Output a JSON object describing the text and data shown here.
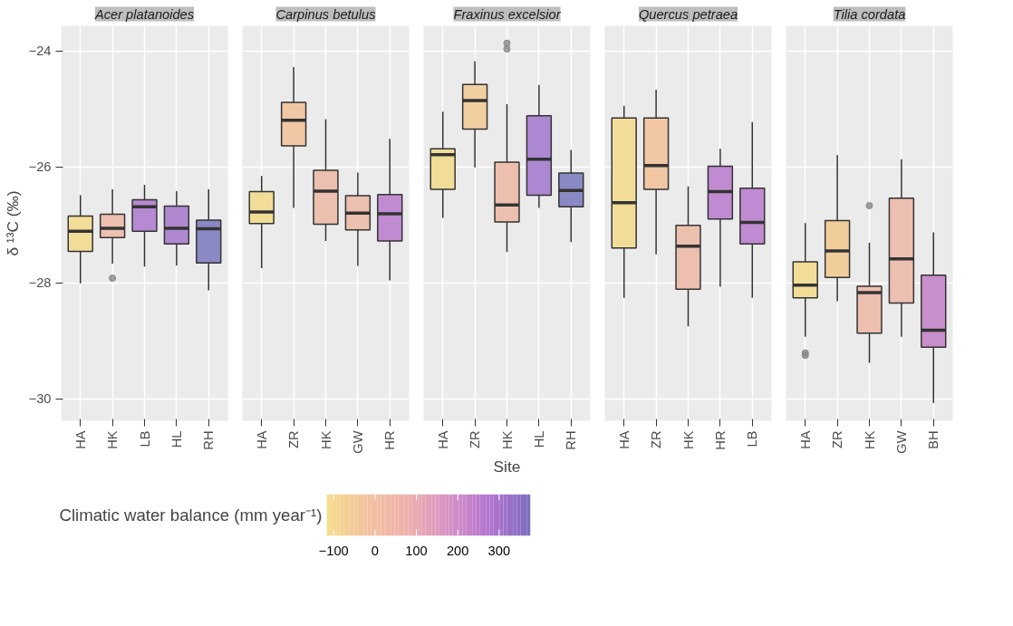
{
  "chart_data": [
    {
      "type": "box",
      "title": "Acer platanoides",
      "ylabel": "δ ¹³C (‰)",
      "clabel": "Climatic water balance (mm year⁻¹)",
      "clim": [
        -117,
        376
      ],
      "cticks": [
        -100,
        0,
        100,
        200,
        300
      ],
      "categories": [
        "HA",
        "HK",
        "LB",
        "HL",
        "RH"
      ],
      "colors": [
        "#f2dd98",
        "#ecbfae",
        "#b68ad2",
        "#b088d0",
        "#8b89c4"
      ],
      "boxes": [
        {
          "low": -28.01,
          "q1": -27.46,
          "median": -27.11,
          "q3": -26.85,
          "high": -26.49
        },
        {
          "low": -27.67,
          "q1": -27.22,
          "median": -27.06,
          "q3": -26.82,
          "high": -26.39,
          "outliers": [
            -27.92
          ]
        },
        {
          "low": -27.72,
          "q1": -27.11,
          "median": -26.69,
          "q3": -26.57,
          "high": -26.31
        },
        {
          "low": -27.7,
          "q1": -27.33,
          "median": -27.06,
          "q3": -26.68,
          "high": -26.42
        },
        {
          "low": -28.13,
          "q1": -27.66,
          "median": -27.07,
          "q3": -26.92,
          "high": -26.39
        }
      ],
      "ylim": [
        -30.38,
        -23.57
      ],
      "yticks": [
        -24,
        -26,
        -28,
        -30
      ],
      "grid": true
    },
    {
      "type": "box",
      "title": "Carpinus betulus",
      "categories": [
        "HA",
        "ZR",
        "HK",
        "GW",
        "HR"
      ],
      "colors": [
        "#f2dd98",
        "#f1c7a4",
        "#ecbfae",
        "#ecbfae",
        "#c08bd0"
      ],
      "boxes": [
        {
          "low": -27.75,
          "q1": -26.98,
          "median": -26.78,
          "q3": -26.43,
          "high": -26.16
        },
        {
          "low": -26.71,
          "q1": -25.64,
          "median": -25.2,
          "q3": -24.89,
          "high": -24.28
        },
        {
          "low": -27.28,
          "q1": -26.99,
          "median": -26.42,
          "q3": -26.06,
          "high": -25.18
        },
        {
          "low": -27.71,
          "q1": -27.09,
          "median": -26.8,
          "q3": -26.5,
          "high": -26.1
        },
        {
          "low": -27.96,
          "q1": -27.28,
          "median": -26.81,
          "q3": -26.48,
          "high": -25.52
        }
      ],
      "ylim": [
        -30.38,
        -23.57
      ],
      "yticks": [
        -24,
        -26,
        -28,
        -30
      ],
      "grid": true,
      "tick_labels": "x"
    },
    {
      "type": "box",
      "title": "Fraxinus excelsior",
      "xlabel": "Site",
      "categories": [
        "HA",
        "ZR",
        "HK",
        "HL",
        "RH"
      ],
      "colors": [
        "#f2dd98",
        "#f2cfa0",
        "#ecbfae",
        "#ad88d2",
        "#8b89c4"
      ],
      "boxes": [
        {
          "low": -26.88,
          "q1": -26.39,
          "median": -25.79,
          "q3": -25.69,
          "high": -25.05
        },
        {
          "low": -26.01,
          "q1": -25.35,
          "median": -24.86,
          "q3": -24.58,
          "high": -24.18
        },
        {
          "low": -27.47,
          "q1": -26.95,
          "median": -26.66,
          "q3": -25.92,
          "high": -24.92,
          "outliers": [
            -23.87,
            -23.97
          ]
        },
        {
          "low": -26.71,
          "q1": -26.49,
          "median": -25.87,
          "q3": -25.12,
          "high": -24.59
        },
        {
          "low": -27.3,
          "q1": -26.69,
          "median": -26.41,
          "q3": -26.11,
          "high": -25.71
        }
      ],
      "ylim": [
        -30.38,
        -23.57
      ],
      "yticks": [
        -24,
        -26,
        -28,
        -30
      ],
      "grid": true,
      "tick_labels": "x"
    },
    {
      "type": "box",
      "title": "Quercus petraea",
      "categories": [
        "HA",
        "ZR",
        "HK",
        "HR",
        "LB"
      ],
      "colors": [
        "#f2dd98",
        "#f1c7a4",
        "#ecbfae",
        "#c08bd0",
        "#c08bd0"
      ],
      "boxes": [
        {
          "low": -28.26,
          "q1": -27.4,
          "median": -26.62,
          "q3": -25.16,
          "high": -24.95
        },
        {
          "low": -27.51,
          "q1": -26.39,
          "median": -25.98,
          "q3": -25.16,
          "high": -24.67
        },
        {
          "low": -28.75,
          "q1": -28.11,
          "median": -27.37,
          "q3": -27.01,
          "high": -26.34
        },
        {
          "low": -28.07,
          "q1": -26.9,
          "median": -26.43,
          "q3": -25.99,
          "high": -25.69
        },
        {
          "low": -28.26,
          "q1": -27.33,
          "median": -26.96,
          "q3": -26.37,
          "high": -25.23
        }
      ],
      "ylim": [
        -30.38,
        -23.57
      ],
      "yticks": [
        -24,
        -26,
        -28,
        -30
      ],
      "grid": true,
      "tick_labels": "x"
    },
    {
      "type": "box",
      "title": "Tilia cordata",
      "categories": [
        "HA",
        "ZR",
        "HK",
        "GW",
        "BH"
      ],
      "colors": [
        "#f2dd98",
        "#f2cd9c",
        "#ecbfae",
        "#ecbfb0",
        "#c98ecc"
      ],
      "boxes": [
        {
          "low": -28.93,
          "q1": -28.26,
          "median": -28.04,
          "q3": -27.64,
          "high": -26.97,
          "outliers": [
            -29.21,
            -29.25
          ]
        },
        {
          "low": -28.32,
          "q1": -27.91,
          "median": -27.45,
          "q3": -26.93,
          "high": -25.8
        },
        {
          "low": -29.38,
          "q1": -28.87,
          "median": -28.17,
          "q3": -28.06,
          "high": -27.31,
          "outliers": [
            -26.67
          ]
        },
        {
          "low": -28.93,
          "q1": -28.35,
          "median": -27.59,
          "q3": -26.54,
          "high": -25.87
        },
        {
          "low": -30.07,
          "q1": -29.11,
          "median": -28.82,
          "q3": -27.87,
          "high": -27.13
        }
      ],
      "ylim": [
        -30.38,
        -23.57
      ],
      "yticks": [
        -24,
        -26,
        -28,
        -30
      ],
      "grid": true,
      "tick_labels": "x"
    }
  ]
}
